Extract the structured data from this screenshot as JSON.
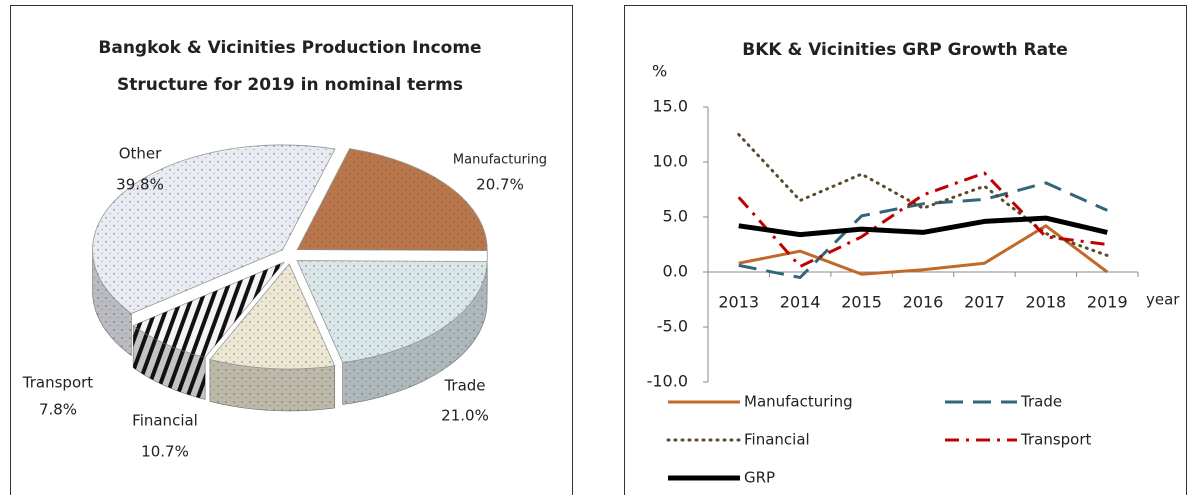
{
  "chart_data": [
    {
      "type": "pie",
      "title": [
        "Bangkok & Vicinities Production Income",
        "Structure for 2019 in nominal terms"
      ],
      "categories": [
        "Manufacturing",
        "Trade",
        "Financial",
        "Transport",
        "Other"
      ],
      "values": [
        20.7,
        21.0,
        10.7,
        7.8,
        39.8
      ],
      "value_labels": [
        "20.7%",
        "21.0%",
        "10.7%",
        "7.8%",
        "39.8%"
      ],
      "colors": [
        "#b8764a",
        "#d9e6e8",
        "#ece7d2",
        "#f4f4f4",
        "#e9ebf3"
      ]
    },
    {
      "type": "line",
      "title": "BKK & Vicinities GRP Growth Rate",
      "y_label": "%",
      "x_label": "year",
      "categories": [
        "2013",
        "2014",
        "2015",
        "2016",
        "2017",
        "2018",
        "2019"
      ],
      "ylim": [
        -10,
        15
      ],
      "yticks": [
        {
          "value": -10,
          "label": "-10.0"
        },
        {
          "value": -5,
          "label": "-5.0"
        },
        {
          "value": 0,
          "label": "0.0"
        },
        {
          "value": 5,
          "label": "5.0"
        },
        {
          "value": 10,
          "label": "10.0"
        },
        {
          "value": 15,
          "label": "15.0"
        }
      ],
      "series": [
        {
          "name": "Manufacturing",
          "color": "#c0692a",
          "style": "solid",
          "values": [
            0.8,
            1.9,
            -0.2,
            0.2,
            0.8,
            4.2,
            0.0
          ]
        },
        {
          "name": "Trade",
          "color": "#31667a",
          "style": "dashed",
          "values": [
            0.6,
            -0.5,
            5.1,
            6.2,
            6.6,
            8.1,
            5.6
          ]
        },
        {
          "name": "Financial",
          "color": "#5a4a2a",
          "style": "dotted",
          "values": [
            12.5,
            6.5,
            8.9,
            5.8,
            7.8,
            3.5,
            1.5
          ]
        },
        {
          "name": "Transport",
          "color": "#c00000",
          "style": "dashdot",
          "values": [
            6.8,
            0.5,
            3.2,
            7.0,
            9.0,
            3.2,
            2.5
          ]
        },
        {
          "name": "GRP",
          "color": "#000000",
          "style": "thick",
          "values": [
            4.2,
            3.4,
            3.9,
            3.6,
            4.6,
            4.9,
            3.6
          ]
        }
      ]
    }
  ]
}
